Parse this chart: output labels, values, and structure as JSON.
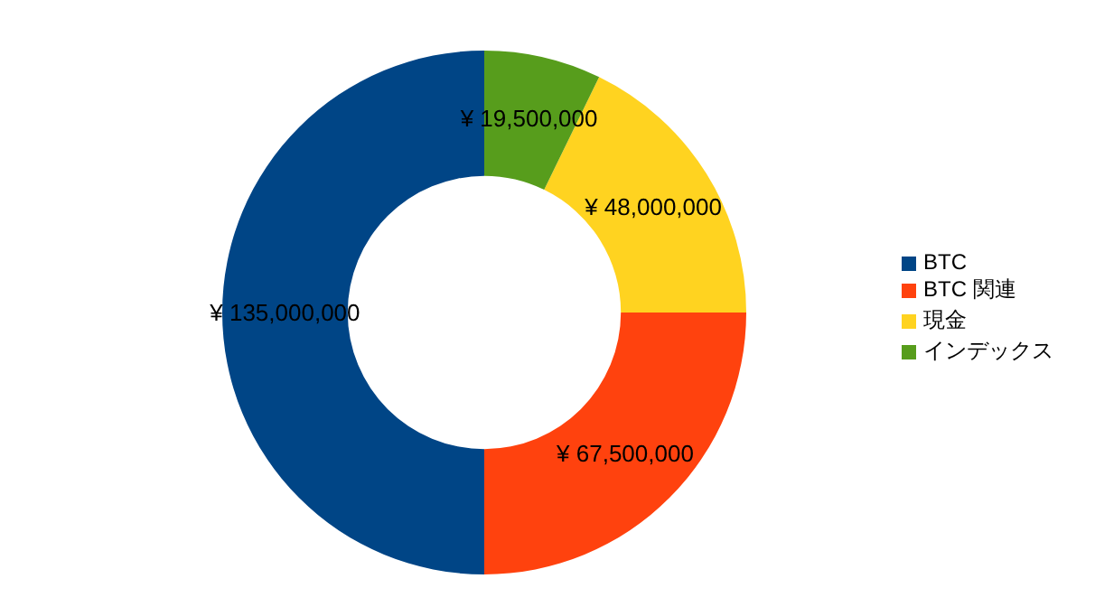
{
  "chart_data": {
    "type": "donut",
    "categories": [
      "BTC",
      "BTC 関連",
      "現金",
      "インデックス"
    ],
    "values": [
      135000000,
      67500000,
      48000000,
      19500000
    ],
    "colors": [
      "#004586",
      "#ff420e",
      "#ffd320",
      "#579d1c"
    ],
    "value_labels": [
      "¥ 135,000,000",
      "¥ 67,500,000",
      "¥ 48,000,000",
      "¥ 19,500,000"
    ],
    "legend": "right"
  }
}
